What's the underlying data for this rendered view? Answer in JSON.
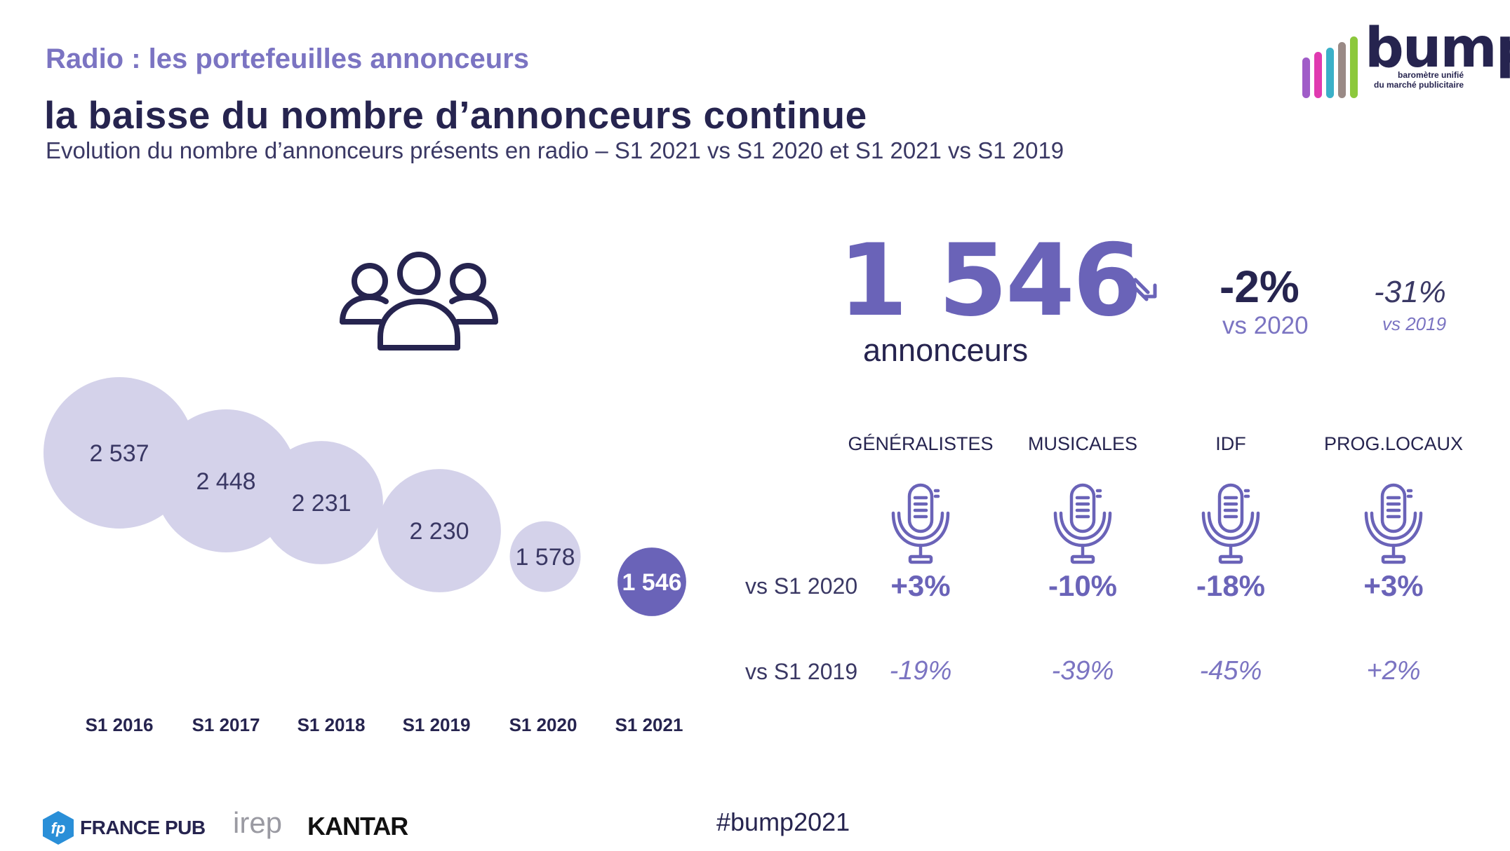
{
  "header": {
    "section_title": "Radio : les portefeuilles annonceurs",
    "title": "la baisse du nombre d’annonceurs continue",
    "subtitle": "Evolution du nombre d’annonceurs présents en radio – S1 2021 vs S1 2020 et S1 2021 vs S1 2019"
  },
  "logo": {
    "word": "bump",
    "tagline_line1": "baromètre unifié",
    "tagline_line2": "du marché publicitaire",
    "bar_colors": [
      "#a05cc8",
      "#e03ab0",
      "#3bb0c8",
      "#9a8a86",
      "#8cc83c"
    ]
  },
  "kpi": {
    "value": "1 546",
    "label": "annonceurs",
    "vs2020_pct": "-2%",
    "vs2020_label": "vs 2020",
    "vs2019_pct": "-31%",
    "vs2019_label": "vs 2019"
  },
  "chart_data": {
    "type": "bubble",
    "categories": [
      "S1 2016",
      "S1 2017",
      "S1 2018",
      "S1 2019",
      "S1 2020",
      "S1 2021"
    ],
    "values": [
      2537,
      2448,
      2231,
      2230,
      1578,
      1546
    ],
    "value_labels": [
      "2 537",
      "2 448",
      "2 231",
      "2 230",
      "1 578",
      "1 546"
    ],
    "colors": {
      "past": "#d4d2ea",
      "current": "#6a63b8"
    }
  },
  "categories_section": {
    "row_label_2020": "vs S1 2020",
    "row_label_2019": "vs S1 2019",
    "items": [
      {
        "name": "GÉNÉRALISTES",
        "vs2020": "+3%",
        "vs2019": "-19%"
      },
      {
        "name": "MUSICALES",
        "vs2020": "-10%",
        "vs2019": "-39%"
      },
      {
        "name": "IDF",
        "vs2020": "-18%",
        "vs2019": "-45%"
      },
      {
        "name": "PROG.LOCAUX",
        "vs2020": "+3%",
        "vs2019": "+2%"
      }
    ]
  },
  "footer": {
    "francepub": "FRANCE PUB",
    "irep": "irep",
    "kantar": "KANTAR",
    "hashtag": "#bump2021"
  },
  "colors": {
    "accent": "#6a63b8",
    "title": "#26244f",
    "light_accent": "#7b74c2"
  }
}
